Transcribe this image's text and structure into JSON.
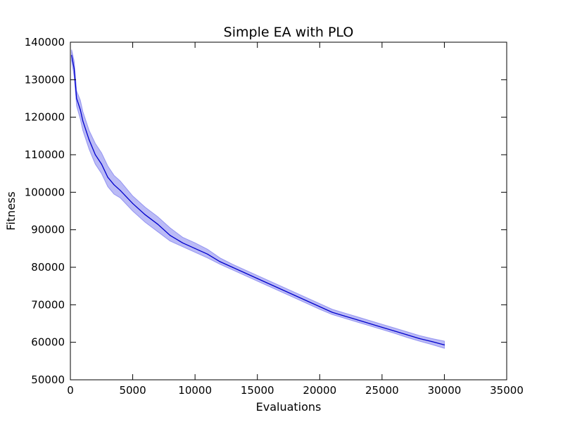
{
  "chart_data": {
    "type": "line",
    "title": "Simple EA with PLO",
    "xlabel": "Evaluations",
    "ylabel": "Fitness",
    "xlim": [
      0,
      35000
    ],
    "ylim": [
      50000,
      140000
    ],
    "xticks": [
      0,
      5000,
      10000,
      15000,
      20000,
      25000,
      30000,
      35000
    ],
    "yticks": [
      50000,
      60000,
      70000,
      80000,
      90000,
      100000,
      110000,
      120000,
      130000,
      140000
    ],
    "xtick_labels": [
      "0",
      "5000",
      "10000",
      "15000",
      "20000",
      "25000",
      "30000",
      "35000"
    ],
    "ytick_labels": [
      "50000",
      "60000",
      "70000",
      "80000",
      "90000",
      "100000",
      "110000",
      "120000",
      "130000",
      "140000"
    ],
    "grid": false,
    "colors": {
      "line": "#0000cc",
      "band": "#7777ee"
    },
    "series": [
      {
        "x": [
          100,
          300,
          500,
          800,
          1000,
          1500,
          2000,
          2500,
          3000,
          3500,
          4000,
          5000,
          6000,
          7000,
          8000,
          9000,
          10000,
          11000,
          12000,
          13000,
          14000,
          15000,
          16000,
          17000,
          18000,
          19000,
          20000,
          21000,
          22000,
          23000,
          24000,
          25000,
          26000,
          27000,
          28000,
          29000,
          30000
        ],
        "y": [
          136500,
          133000,
          125000,
          122000,
          119000,
          114000,
          110000,
          107500,
          104000,
          102000,
          100500,
          97000,
          94000,
          91500,
          88500,
          86500,
          85000,
          83500,
          81500,
          80000,
          78500,
          77000,
          75500,
          74000,
          72500,
          71000,
          69500,
          68000,
          67000,
          66000,
          65000,
          64000,
          63000,
          62000,
          61000,
          60200,
          59300
        ],
        "lower": [
          135000,
          131000,
          123000,
          119500,
          116500,
          111500,
          107500,
          105000,
          101500,
          99500,
          98500,
          95000,
          92000,
          89500,
          87000,
          85500,
          84000,
          82500,
          80800,
          79300,
          77800,
          76300,
          74800,
          73300,
          71800,
          70300,
          68800,
          67400,
          66400,
          65400,
          64400,
          63400,
          62400,
          61300,
          60300,
          59400,
          58400
        ],
        "upper": [
          138000,
          135000,
          127000,
          124500,
          121500,
          116500,
          113000,
          110500,
          107000,
          104500,
          103000,
          99000,
          96000,
          93500,
          90500,
          88000,
          86500,
          84800,
          82500,
          80800,
          79300,
          77800,
          76300,
          74800,
          73300,
          71800,
          70300,
          68800,
          67800,
          66800,
          65800,
          64800,
          63800,
          62800,
          61800,
          61000,
          60300
        ]
      }
    ]
  }
}
